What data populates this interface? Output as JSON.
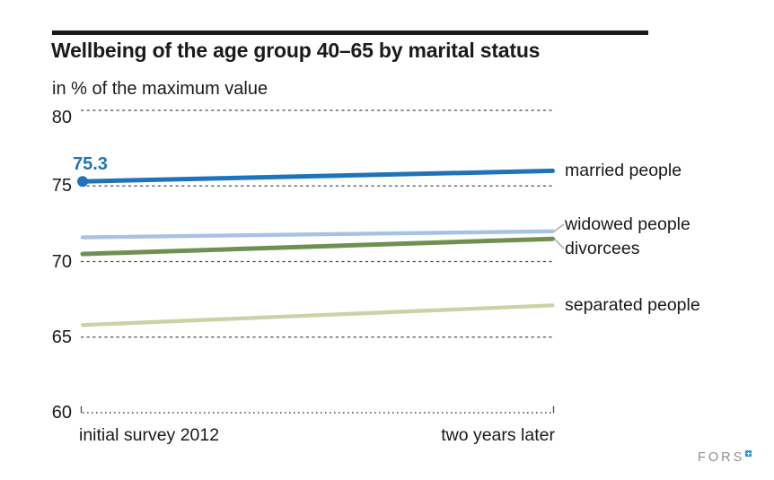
{
  "header": {
    "title": "Wellbeing of the age group 40–65 by marital status",
    "subtitle": "in % of the maximum value"
  },
  "chart_data": {
    "type": "line",
    "title": "Wellbeing of the age group 40–65 by marital status",
    "subtitle": "in % of the maximum value",
    "x_labels": [
      "initial survey 2012",
      "two years later"
    ],
    "yticks": [
      80,
      75,
      70,
      65,
      60
    ],
    "ylim": [
      60,
      80
    ],
    "grid": "horizontal dashed",
    "legend_position": "right of line ends",
    "series": [
      {
        "name": "married people",
        "values": [
          75.3,
          76.0
        ],
        "color": "#1e74bc",
        "start_dot": true,
        "point_label": "75.3",
        "label_offset": 0
      },
      {
        "name": "widowed people",
        "values": [
          71.6,
          72.0
        ],
        "color": "#a7c2e4",
        "start_dot": false,
        "label_offset": -8,
        "callout": true
      },
      {
        "name": "divorcees",
        "values": [
          70.5,
          71.5
        ],
        "color": "#6e9153",
        "start_dot": false,
        "label_offset": 11,
        "callout": true
      },
      {
        "name": "separated people",
        "values": [
          65.8,
          67.1
        ],
        "color": "#cbd2a6",
        "start_dot": false,
        "label_offset": 0
      }
    ],
    "colors": {
      "gridline": "#4d4d4d",
      "text": "#1a1a1a",
      "callout_connector": "#999999"
    }
  },
  "footer": {
    "logo_text": "FORS",
    "logo_mark": "blue-square-plus",
    "logo_mark_color": "#2d9ad2"
  }
}
